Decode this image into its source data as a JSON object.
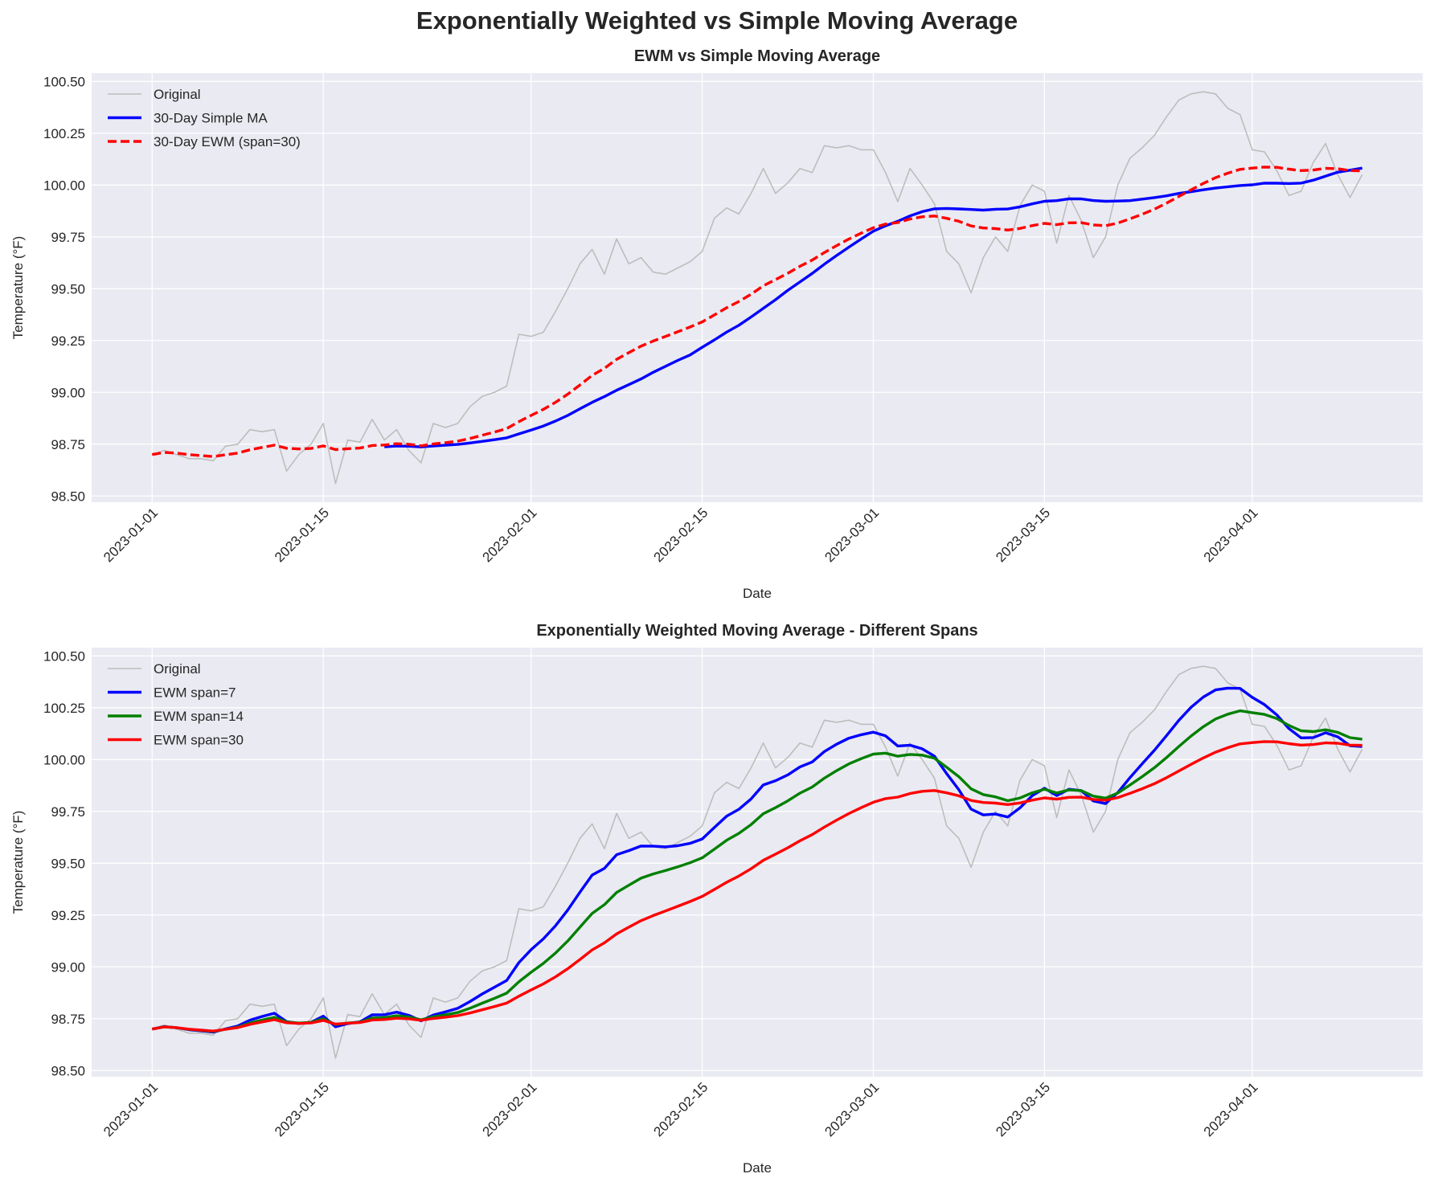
{
  "title": "Exponentially Weighted vs Simple Moving Average",
  "chart_data": [
    {
      "type": "line",
      "title": "EWM vs Simple Moving Average",
      "xlabel": "Date",
      "ylabel": "Temperature (°F)",
      "ylim": [
        98.47,
        100.54
      ],
      "yticks": [
        "98.50",
        "98.75",
        "99.00",
        "99.25",
        "99.50",
        "99.75",
        "100.00",
        "100.25",
        "100.50"
      ],
      "xticks": [
        {
          "day": 0,
          "label": "2023-01-01"
        },
        {
          "day": 14,
          "label": "2023-01-15"
        },
        {
          "day": 31,
          "label": "2023-02-01"
        },
        {
          "day": 45,
          "label": "2023-02-15"
        },
        {
          "day": 59,
          "label": "2023-03-01"
        },
        {
          "day": 73,
          "label": "2023-03-15"
        },
        {
          "day": 90,
          "label": "2023-04-01"
        }
      ],
      "grid": true,
      "legend_position": "top-left",
      "series": [
        {
          "name": "Original",
          "kind": "original",
          "color": "#bdbdbd"
        },
        {
          "name": "30-Day Simple MA",
          "kind": "sma",
          "window": 30,
          "min_periods": 20,
          "color": "#0000ff"
        },
        {
          "name": "30-Day EWM (span=30)",
          "kind": "ewm",
          "span": 30,
          "color": "#ff0000",
          "dashed": true
        }
      ]
    },
    {
      "type": "line",
      "title": "Exponentially Weighted Moving Average - Different Spans",
      "xlabel": "Date",
      "ylabel": "Temperature (°F)",
      "ylim": [
        98.47,
        100.54
      ],
      "yticks": [
        "98.50",
        "98.75",
        "99.00",
        "99.25",
        "99.50",
        "99.75",
        "100.00",
        "100.25",
        "100.50"
      ],
      "xticks": [
        {
          "day": 0,
          "label": "2023-01-01"
        },
        {
          "day": 14,
          "label": "2023-01-15"
        },
        {
          "day": 31,
          "label": "2023-02-01"
        },
        {
          "day": 45,
          "label": "2023-02-15"
        },
        {
          "day": 59,
          "label": "2023-03-01"
        },
        {
          "day": 73,
          "label": "2023-03-15"
        },
        {
          "day": 90,
          "label": "2023-04-01"
        }
      ],
      "grid": true,
      "legend_position": "top-left",
      "series": [
        {
          "name": "Original",
          "kind": "original",
          "color": "#bdbdbd"
        },
        {
          "name": "EWM span=7",
          "kind": "ewm",
          "span": 7,
          "color": "#0000ff"
        },
        {
          "name": "EWM span=14",
          "kind": "ewm",
          "span": 14,
          "color": "#008000"
        },
        {
          "name": "EWM span=30",
          "kind": "ewm",
          "span": 30,
          "color": "#ff0000"
        }
      ]
    }
  ],
  "original": {
    "start_date": "2023-01-01",
    "values": [
      98.7,
      98.72,
      98.7,
      98.68,
      98.68,
      98.67,
      98.74,
      98.75,
      98.82,
      98.81,
      98.82,
      98.62,
      98.7,
      98.75,
      98.85,
      98.56,
      98.77,
      98.76,
      98.87,
      98.77,
      98.82,
      98.72,
      98.66,
      98.85,
      98.83,
      98.85,
      98.93,
      98.98,
      99.0,
      99.03,
      99.28,
      99.27,
      99.29,
      99.39,
      99.5,
      99.62,
      99.69,
      99.57,
      99.74,
      99.62,
      99.65,
      99.58,
      99.57,
      99.6,
      99.63,
      99.68,
      99.84,
      99.89,
      99.86,
      99.96,
      100.08,
      99.96,
      100.01,
      100.08,
      100.06,
      100.19,
      100.18,
      100.19,
      100.17,
      100.17,
      100.06,
      99.92,
      100.08,
      100.0,
      99.91,
      99.68,
      99.62,
      99.48,
      99.65,
      99.75,
      99.68,
      99.9,
      100.0,
      99.97,
      99.72,
      99.95,
      99.83,
      99.65,
      99.75,
      100.0,
      100.13,
      100.18,
      100.24,
      100.33,
      100.41,
      100.44,
      100.45,
      100.44,
      100.37,
      100.34,
      100.17,
      100.16,
      100.07,
      99.95,
      99.97,
      100.11,
      100.2,
      100.05,
      99.94,
      100.05
    ]
  }
}
